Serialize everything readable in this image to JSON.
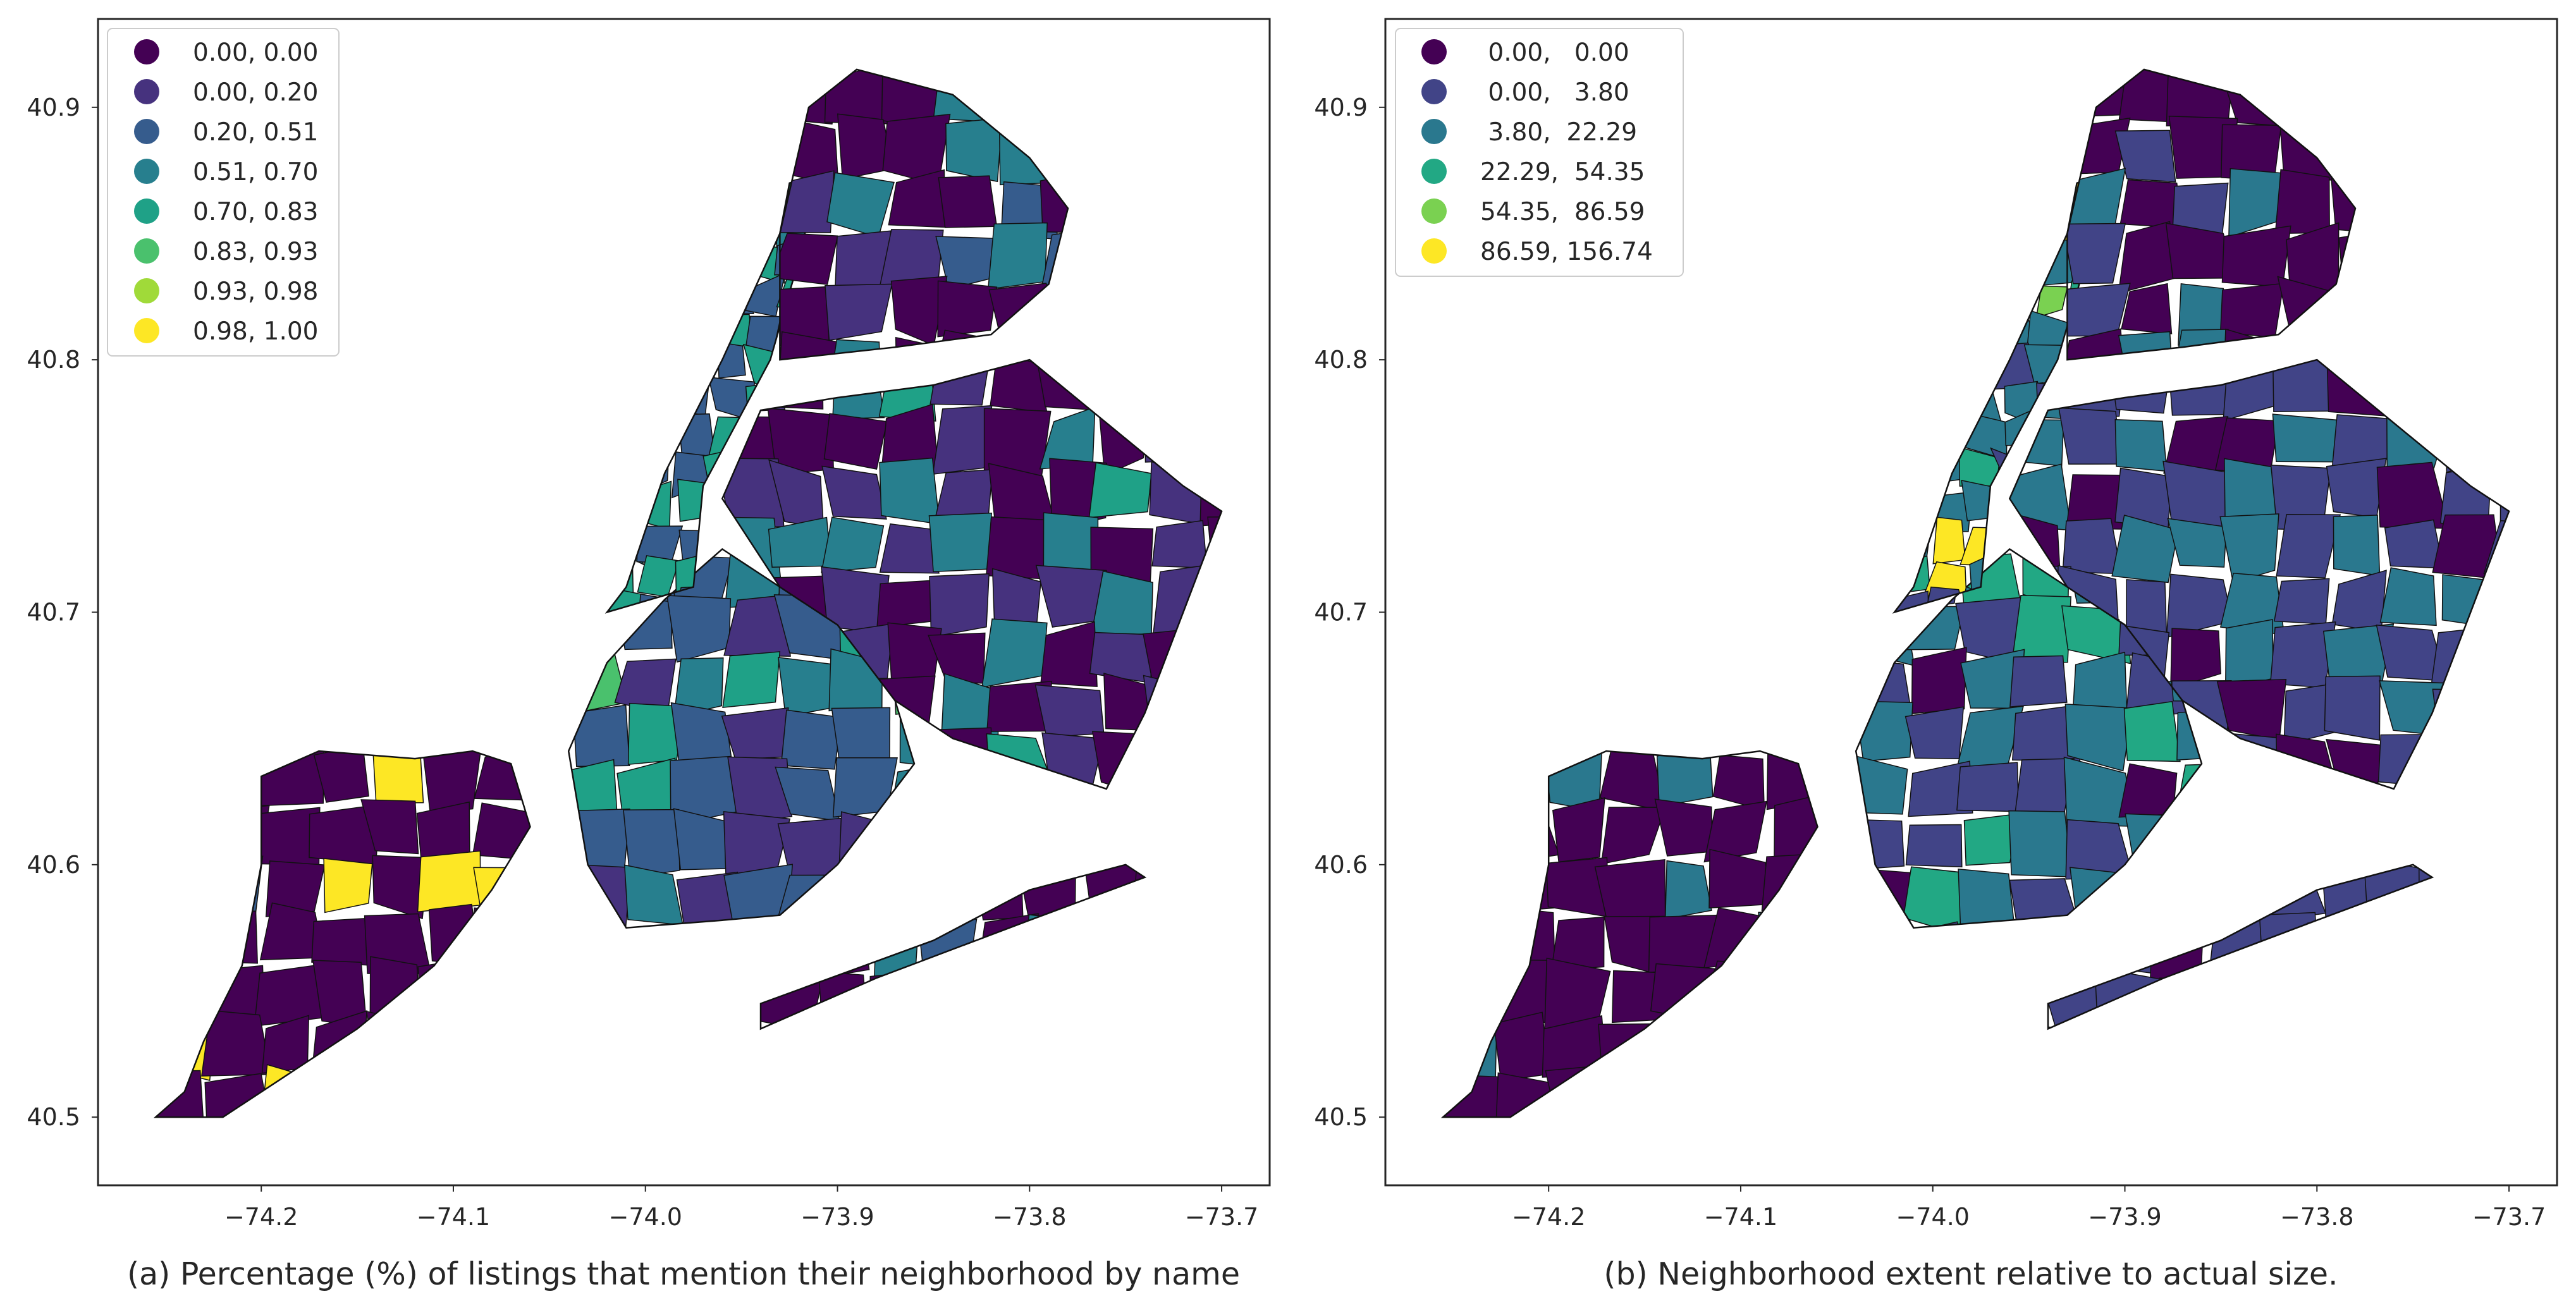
{
  "figure": {
    "x_ticks": [
      "−74.2",
      "−74.1",
      "−74.0",
      "−73.9",
      "−73.8",
      "−73.7"
    ],
    "y_ticks": [
      "40.9",
      "40.8",
      "40.7",
      "40.6",
      "40.5"
    ],
    "x_tick_values": [
      -74.2,
      -74.1,
      -74.0,
      -73.9,
      -73.8,
      -73.7
    ],
    "y_tick_values": [
      40.9,
      40.8,
      40.7,
      40.6,
      40.5
    ],
    "lon_range": [
      -74.285,
      -73.675
    ],
    "lat_range": [
      40.473,
      40.935
    ]
  },
  "chart_data": [
    {
      "type": "choropleth",
      "caption": "(a) Percentage (%) of listings that mention their neighborhood by name",
      "legend_position": "top-left",
      "legend": [
        {
          "label": "0.00, 0.00",
          "color": "#440154"
        },
        {
          "label": "0.00, 0.20",
          "color": "#46327e"
        },
        {
          "label": "0.20, 0.51",
          "color": "#365c8d"
        },
        {
          "label": "0.51, 0.70",
          "color": "#277f8e"
        },
        {
          "label": "0.70, 0.83",
          "color": "#1fa187"
        },
        {
          "label": "0.83, 0.93",
          "color": "#4ac16d"
        },
        {
          "label": "0.93, 0.98",
          "color": "#a0da39"
        },
        {
          "label": "0.98, 1.00",
          "color": "#fde725"
        }
      ]
    },
    {
      "type": "choropleth",
      "caption": "(b) Neighborhood extent relative to actual size.",
      "legend_position": "top-left",
      "legend": [
        {
          "label": " 0.00,   0.00",
          "color": "#440154"
        },
        {
          "label": " 0.00,   3.80",
          "color": "#414487"
        },
        {
          "label": " 3.80,  22.29",
          "color": "#2a788e"
        },
        {
          "label": "22.29,  54.35",
          "color": "#22a884"
        },
        {
          "label": "54.35,  86.59",
          "color": "#7ad151"
        },
        {
          "label": "86.59, 156.74",
          "color": "#fde725"
        }
      ]
    }
  ]
}
